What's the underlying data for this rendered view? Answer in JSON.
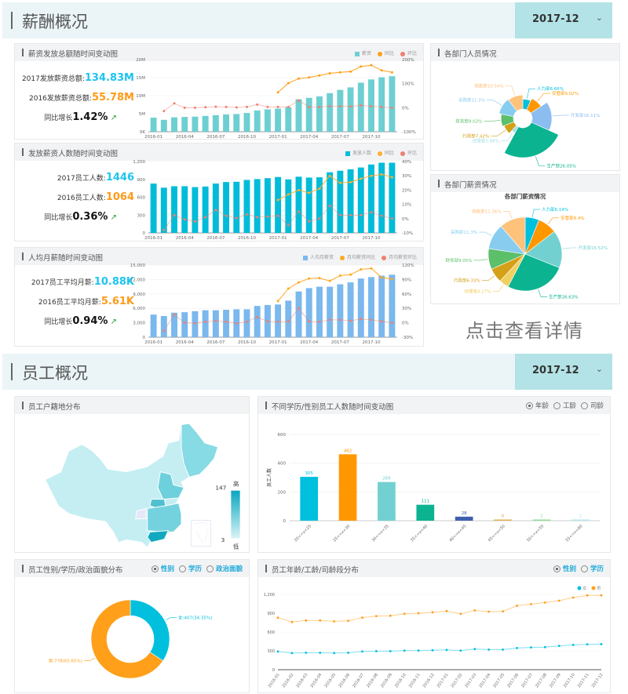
{
  "salary_section": {
    "title": "薪酬概况",
    "date": "2017-12"
  },
  "employee_section": {
    "title": "员工概况",
    "date": "2017-12"
  },
  "months": [
    "2016-01",
    "2016-02",
    "2016-03",
    "2016-04",
    "2016-05",
    "2016-06",
    "2016-07",
    "2016-08",
    "2016-09",
    "2016-10",
    "2016-11",
    "2016-12",
    "2017-01",
    "2017-02",
    "2017-03",
    "2017-04",
    "2017-05",
    "2017-06",
    "2017-07",
    "2017-08",
    "2017-09",
    "2017-10",
    "2017-11",
    "2017-12"
  ],
  "chart_data": [
    {
      "id": "total",
      "type": "bar+line",
      "title": "薪资发放总额随时间变动图",
      "legend": [
        "薪资",
        "同比",
        "环比"
      ],
      "left_ticks": [
        "0K",
        "5M",
        "10M",
        "15M",
        "20M"
      ],
      "ylim": [
        0,
        20
      ],
      "right_ticks": [
        "-100%",
        "0%",
        "100%",
        "200%"
      ],
      "y2lim": [
        -100,
        200
      ],
      "x_ticks": [
        "2016-01",
        "2016-04",
        "2016-07",
        "2016-10",
        "2017-01",
        "2017-04",
        "2017-07",
        "2017-10"
      ],
      "bars": [
        3.9,
        3.3,
        4.0,
        4.1,
        4.2,
        4.4,
        4.6,
        4.8,
        4.9,
        5.2,
        5.9,
        6.2,
        6.4,
        6.8,
        9.0,
        9.4,
        9.8,
        10.7,
        11.6,
        12.3,
        13.6,
        14.5,
        15.1,
        15.4
      ],
      "yoy_from": "2017-01",
      "yoy": [
        64,
        102,
        121,
        126,
        134,
        143,
        147,
        150,
        171,
        177,
        155,
        147
      ],
      "mom_from": "2016-02",
      "mom": [
        -14,
        18,
        0,
        0,
        2,
        4,
        3,
        1,
        3,
        13,
        3,
        3,
        3,
        30,
        3,
        3,
        6,
        6,
        5,
        10,
        6,
        3,
        0
      ],
      "colors": {
        "bar": "#6ecfd2",
        "yoy": "#ff9f1a",
        "mom": "#f08070"
      },
      "stats": [
        {
          "label": "2017发放薪资总额:",
          "value": "134.83M"
        },
        {
          "label": "2016发放薪资总额:",
          "value": "55.78M"
        },
        {
          "label": "同比增长",
          "value": "1.42%"
        }
      ]
    },
    {
      "id": "count",
      "type": "bar+line",
      "title": "发放薪资人数随时间变动图",
      "legend": [
        "发放人数",
        "同比",
        "环比"
      ],
      "left_ticks": [
        "0",
        "300",
        "600",
        "900",
        "1,200"
      ],
      "ylim": [
        0,
        1200
      ],
      "right_ticks": [
        "-10%",
        "0%",
        "10%",
        "20%",
        "30%",
        "40%"
      ],
      "y2lim": [
        -10,
        40
      ],
      "x_ticks": [
        "2016-01",
        "2016-04",
        "2016-07",
        "2016-10",
        "2017-01",
        "2017-04",
        "2017-07",
        "2017-10"
      ],
      "bars": [
        830,
        760,
        785,
        785,
        770,
        780,
        830,
        855,
        860,
        890,
        905,
        920,
        940,
        900,
        945,
        930,
        935,
        1020,
        1045,
        1070,
        1100,
        1150,
        1180,
        1180
      ],
      "yoy_from": "2017-01",
      "yoy": [
        13,
        17,
        20,
        18,
        21,
        30,
        25,
        25.5,
        28,
        30,
        31,
        29
      ],
      "mom_from": "2016-02",
      "mom": [
        -8,
        2.4,
        -0.5,
        -2,
        1,
        6,
        2,
        0.4,
        3,
        1,
        1.5,
        2,
        -4.6,
        5,
        -2,
        0,
        9,
        2.5,
        2.5,
        2.5,
        4.5,
        2,
        0
      ],
      "colors": {
        "bar": "#00bcd8",
        "yoy": "#ffb030",
        "mom": "#f08070"
      },
      "stats": [
        {
          "label": "2017员工人数:",
          "value": "1446"
        },
        {
          "label": "2016员工人数:",
          "value": "1064"
        },
        {
          "label": "同比增长",
          "value": "0.36%"
        }
      ]
    },
    {
      "id": "avg",
      "type": "bar+line",
      "title": "人均月薪随时间变动图",
      "legend": [
        "人均月薪资",
        "月均薪资同比",
        "月均薪资环比"
      ],
      "left_ticks": [
        "0",
        "3,000",
        "6,000",
        "9,000",
        "12,000",
        "15,000"
      ],
      "ylim": [
        0,
        15000
      ],
      "right_ticks": [
        "-30%",
        "0%",
        "30%",
        "60%",
        "90%",
        "120%"
      ],
      "y2lim": [
        -30,
        120
      ],
      "x_ticks": [
        "2016-01",
        "2016-04",
        "2016-07",
        "2016-10",
        "2017-01",
        "2017-04",
        "2017-07",
        "2017-10"
      ],
      "bars": [
        4700,
        4400,
        5100,
        5200,
        5400,
        5600,
        5600,
        5700,
        5800,
        5800,
        6500,
        6700,
        6800,
        7600,
        9500,
        10200,
        10500,
        10500,
        11000,
        11400,
        12200,
        12500,
        12800,
        13000
      ],
      "yoy_from": "2017-01",
      "yoy": [
        45,
        71,
        84,
        92,
        93,
        87,
        98,
        100,
        111,
        113,
        94,
        91
      ],
      "mom_from": "2016-02",
      "mom": [
        -17,
        17,
        0,
        -1,
        2,
        4,
        2,
        -1,
        2,
        12,
        3,
        2,
        3,
        30,
        3,
        2,
        6,
        6,
        4,
        8,
        6,
        3,
        0
      ],
      "colors": {
        "bar": "#7ab8ee",
        "yoy": "#ffa820",
        "mom": "#f08070"
      },
      "stats": [
        {
          "label": "2017员工平均月薪:",
          "value": "10.88K"
        },
        {
          "label": "2016员工平均月薪:",
          "value": "5.61K"
        },
        {
          "label": "同比增长",
          "value": "0.94%"
        }
      ]
    },
    {
      "id": "dept_people",
      "type": "pie",
      "variant": "rose",
      "title": "各部门人员情况",
      "slices": [
        {
          "name": "人力部",
          "value": 6.66,
          "label": "人力部6.66%",
          "color": "#00c0de"
        },
        {
          "name": "安管部",
          "value": 9.02,
          "label": "安管部9.02%",
          "color": "#ff9800"
        },
        {
          "name": "开发部",
          "value": 16.11,
          "label": "开发部16.11%",
          "color": "#8bbdf0"
        },
        {
          "name": "生产部",
          "value": 26.05,
          "label": "生产部26.05%",
          "color": "#0bb391"
        },
        {
          "name": "经理室",
          "value": 3.88,
          "label": "经理室3.88%",
          "color": "#a6e0e8"
        },
        {
          "name": "行政部",
          "value": 7.42,
          "label": "行政部7.42%",
          "color": "#d4a017"
        },
        {
          "name": "财务部",
          "value": 9.02,
          "label": "财务部9.02%",
          "color": "#5cbf6a"
        },
        {
          "name": "采购部",
          "value": 11.3,
          "label": "采购部11.3%",
          "color": "#88cdf0"
        },
        {
          "name": "销售部",
          "value": 10.54,
          "label": "销售部10.54%",
          "color": "#ffc27a"
        }
      ]
    },
    {
      "id": "dept_salary",
      "type": "pie",
      "title": "各部门薪资情况",
      "inner_title": "各部门薪资情况",
      "slices": [
        {
          "name": "人力部",
          "value": 6.14,
          "label": "人力部6.14%",
          "color": "#00c0de"
        },
        {
          "name": "安管部",
          "value": 8.4,
          "label": "安管部8.4%",
          "color": "#ff9800"
        },
        {
          "name": "开发部",
          "value": 16.52,
          "label": "开发部16.52%",
          "color": "#72d0d0"
        },
        {
          "name": "生产部",
          "value": 26.63,
          "label": "生产部26.63%",
          "color": "#0bb391"
        },
        {
          "name": "经理室",
          "value": 4.27,
          "label": "经理室4.27%",
          "color": "#f0d060"
        },
        {
          "name": "行政部",
          "value": 6.33,
          "label": "行政部6.33%",
          "color": "#d4a017"
        },
        {
          "name": "财务部",
          "value": 9.05,
          "label": "财务部9.05%",
          "color": "#5cbf6a"
        },
        {
          "name": "采购部",
          "value": 11.3,
          "label": "采购部11.3%",
          "color": "#88cdf0"
        },
        {
          "name": "销售部",
          "value": 11.36,
          "label": "销售部11.36%",
          "color": "#ffc27a"
        }
      ]
    },
    {
      "id": "age_bar",
      "type": "bar",
      "title": "不同学历/性别员工人数随时间变动图",
      "ylabel": "员工人数",
      "ylim": [
        0,
        600
      ],
      "y_ticks": [
        "0",
        "200",
        "400",
        "600"
      ],
      "categories": [
        "20<=x<25",
        "25<=x<30",
        "30<=x<35",
        "35<=x<40",
        "40<=x<45",
        "45<=x<50",
        "50<=x<55",
        "55<=x<60"
      ],
      "values": [
        305,
        462,
        269,
        111,
        28,
        6,
        2,
        2
      ],
      "colors": [
        "#00c0de",
        "#ff9800",
        "#72d0d0",
        "#0bb391",
        "#3f5fb0",
        "#e0b050",
        "#8fdc9a",
        "#b8e4f5"
      ],
      "options": [
        {
          "label": "年龄",
          "checked": true
        },
        {
          "label": "工龄",
          "checked": false
        },
        {
          "label": "司龄",
          "checked": false
        }
      ]
    },
    {
      "id": "gender_donut",
      "type": "pie",
      "variant": "donut",
      "title": "员工性别/学历/政治面貌分布",
      "slices": [
        {
          "name": "女",
          "value": 407,
          "label": "女:407(34.35%)",
          "color": "#00c0de"
        },
        {
          "name": "男",
          "value": 778,
          "label": "男:778(65.65%)",
          "color": "#ff9f1a"
        }
      ],
      "options": [
        {
          "label": "性别",
          "checked": true
        },
        {
          "label": "学历",
          "checked": false
        },
        {
          "label": "政治面貌",
          "checked": false
        }
      ]
    },
    {
      "id": "gender_line",
      "type": "line",
      "title": "员工年龄/工龄/司龄段分布",
      "ylim": [
        0,
        1200
      ],
      "y_ticks": [
        "0",
        "300",
        "600",
        "900",
        "1,200"
      ],
      "series": [
        {
          "name": "女",
          "color": "#00c0de",
          "values": [
            290,
            265,
            270,
            270,
            265,
            270,
            290,
            295,
            295,
            305,
            305,
            310,
            315,
            305,
            330,
            320,
            320,
            345,
            355,
            360,
            380,
            395,
            405,
            407
          ]
        },
        {
          "name": "男",
          "color": "#ff9f1a",
          "values": [
            830,
            760,
            785,
            785,
            770,
            780,
            830,
            855,
            860,
            890,
            900,
            915,
            935,
            890,
            945,
            925,
            930,
            1020,
            1045,
            1070,
            1100,
            1150,
            1185,
            1185
          ]
        }
      ],
      "options": [
        {
          "label": "性别",
          "checked": true
        },
        {
          "label": "学历",
          "checked": false
        }
      ]
    }
  ],
  "map": {
    "title": "员工户籍地分布",
    "max": "147",
    "min": "3",
    "high_label": "高",
    "low_label": "低",
    "colors": {
      "low": "#d8f3f6",
      "high": "#0aa6bf"
    }
  },
  "more_link": "点击查看详情"
}
